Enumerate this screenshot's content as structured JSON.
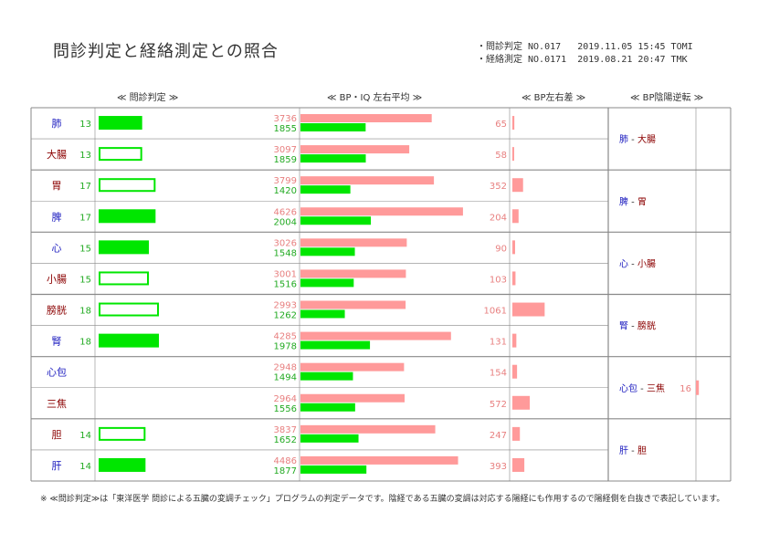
{
  "title": "問診判定と経絡測定との照合",
  "meta": {
    "line1": "・問診判定 NO.017   2019.11.05 15:45 TOMI",
    "line2": "・経絡測定 NO.0171  2019.08.21 20:47 TMK"
  },
  "headers": {
    "monshin": "≪ 問診判定 ≫",
    "bp_avg": "≪ BP・IQ 左右平均 ≫",
    "bp_diff": "≪ BP左右差 ≫",
    "bp_inv": "≪ BP陰陽逆転 ≫"
  },
  "footnote": "※ ≪問診判定≫は「東洋医学 問診による五臓の変調チェック」プログラムの判定データです。陰経である五臓の変調は対応する陽経にも作用するので陽経側を白抜きで表記しています。",
  "colors": {
    "green": "#00e600",
    "pink": "#ff9a9a",
    "yin_text": "#2020c0",
    "yang_text": "#8b0000",
    "grid": "#888888"
  },
  "chart_data": {
    "type": "bar",
    "rows": [
      {
        "organ": "肺",
        "score": 13,
        "hollow": false,
        "bp": 3736,
        "iq": 1855,
        "diff": 65
      },
      {
        "organ": "大腸",
        "score": 13,
        "hollow": true,
        "bp": 3097,
        "iq": 1859,
        "diff": 58
      },
      {
        "organ": "胃",
        "score": 17,
        "hollow": true,
        "bp": 3799,
        "iq": 1420,
        "diff": 352
      },
      {
        "organ": "脾",
        "score": 17,
        "hollow": false,
        "bp": 4626,
        "iq": 2004,
        "diff": 204
      },
      {
        "organ": "心",
        "score": 15,
        "hollow": false,
        "bp": 3026,
        "iq": 1548,
        "diff": 90
      },
      {
        "organ": "小腸",
        "score": 15,
        "hollow": true,
        "bp": 3001,
        "iq": 1516,
        "diff": 103
      },
      {
        "organ": "膀胱",
        "score": 18,
        "hollow": true,
        "bp": 2993,
        "iq": 1262,
        "diff": 1061
      },
      {
        "organ": "腎",
        "score": 18,
        "hollow": false,
        "bp": 4285,
        "iq": 1978,
        "diff": 131
      },
      {
        "organ": "心包",
        "score": null,
        "hollow": false,
        "bp": 2948,
        "iq": 1494,
        "diff": 154
      },
      {
        "organ": "三焦",
        "score": null,
        "hollow": false,
        "bp": 2964,
        "iq": 1556,
        "diff": 572
      },
      {
        "organ": "胆",
        "score": 14,
        "hollow": true,
        "bp": 3837,
        "iq": 1652,
        "diff": 247
      },
      {
        "organ": "肝",
        "score": 14,
        "hollow": false,
        "bp": 4486,
        "iq": 1877,
        "diff": 393
      }
    ],
    "yin_organs": [
      "肺",
      "脾",
      "心",
      "腎",
      "心包",
      "肝"
    ],
    "inversion": [
      {
        "a": "肺",
        "b": "大腸",
        "value": null
      },
      {
        "a": "脾",
        "b": "胃",
        "value": null
      },
      {
        "a": "心",
        "b": "小腸",
        "value": null
      },
      {
        "a": "腎",
        "b": "膀胱",
        "value": null
      },
      {
        "a": "心包",
        "b": "三焦",
        "value": 16
      },
      {
        "a": "肝",
        "b": "胆",
        "value": null
      }
    ],
    "scales": {
      "score_max": 30,
      "bp_max": 5200,
      "diff_max": 3000,
      "inv_max": 40
    }
  }
}
